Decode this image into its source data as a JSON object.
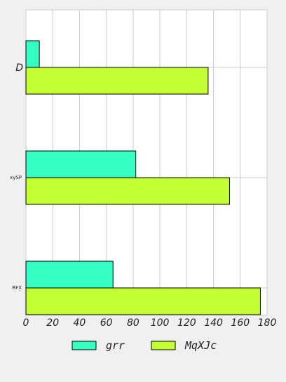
{
  "chart_data": {
    "type": "bar",
    "orientation": "horizontal",
    "categories": [
      "D",
      "xySP",
      "RFX"
    ],
    "series": [
      {
        "name": "grr",
        "values": [
          10,
          82,
          65
        ],
        "color": "#36ffc4"
      },
      {
        "name": "MqXJc",
        "values": [
          136,
          152,
          175
        ],
        "color": "#c4ff33"
      }
    ],
    "x_ticks": [
      0,
      20,
      40,
      60,
      80,
      100,
      120,
      140,
      160,
      180
    ],
    "xlim": [
      0,
      180
    ],
    "grid": true,
    "legend_placement": "bottom-center",
    "background": "#ffffff",
    "page_background": "#f0f0f0",
    "bar_edge_color": "#000000",
    "grid_color": "#cccccc"
  }
}
